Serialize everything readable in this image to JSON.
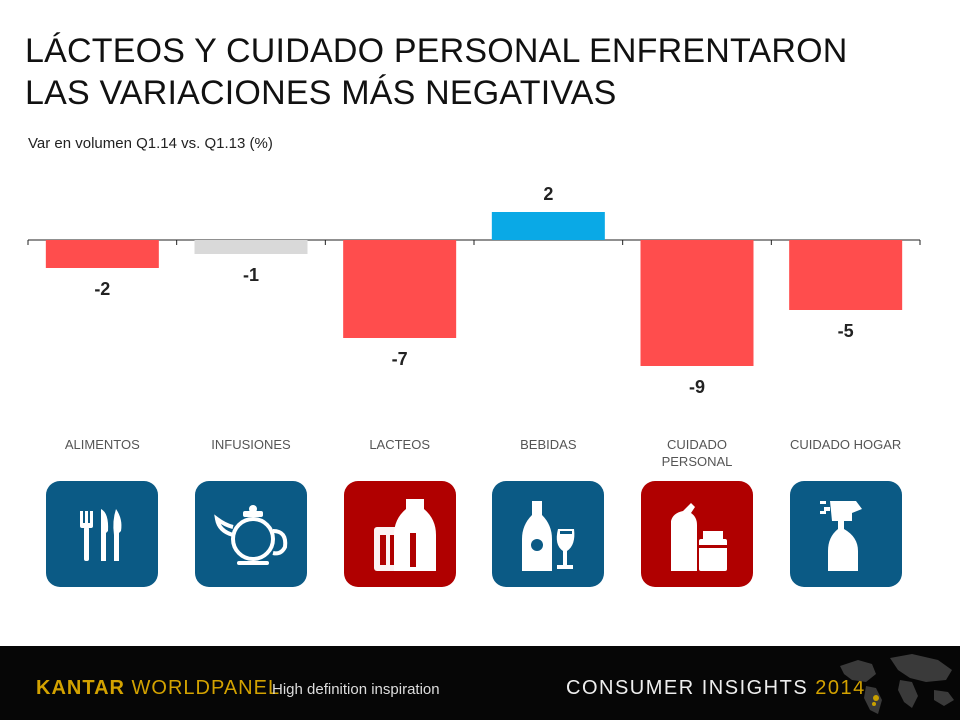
{
  "title": {
    "line1": "LÁCTEOS Y CUIDADO PERSONAL ENFRENTARON",
    "line2": "LAS VARIACIONES MÁS NEGATIVAS"
  },
  "subtitle": "Var en volumen Q1.14 vs. Q1.13 (%)",
  "colors": {
    "negative": "#ff4d4d",
    "neutral": "#d9d9d9",
    "positive": "#0aa9e6",
    "tile_blue": "#0b5a85",
    "tile_red": "#b00000"
  },
  "chart_data": {
    "type": "bar",
    "categories": [
      "ALIMENTOS",
      "INFUSIONES",
      "LACTEOS",
      "BEBIDAS",
      "CUIDADO PERSONAL",
      "CUIDADO HOGAR"
    ],
    "values": [
      -2,
      -1,
      -7,
      2,
      -9,
      -5
    ],
    "labels": [
      "-2",
      "-1",
      "-7",
      "2",
      "-9",
      "-5"
    ],
    "bar_colors": [
      "#ff4d4d",
      "#d9d9d9",
      "#ff4d4d",
      "#0aa9e6",
      "#ff4d4d",
      "#ff4d4d"
    ],
    "ylim": [
      -9,
      2
    ],
    "grid": false,
    "title": "",
    "xlabel": "",
    "ylabel": ""
  },
  "categories_display": [
    {
      "label": "ALIMENTOS",
      "icon": "cutlery-icon",
      "tile": "blue"
    },
    {
      "label": "INFUSIONES",
      "icon": "teapot-icon",
      "tile": "blue"
    },
    {
      "label": "LACTEOS",
      "icon": "milk-bottle-icon",
      "tile": "red"
    },
    {
      "label": "BEBIDAS",
      "icon": "bottle-glass-icon",
      "tile": "blue"
    },
    {
      "label": "CUIDADO PERSONAL",
      "icon": "personal-care-icon",
      "tile": "red"
    },
    {
      "label": "CUIDADO HOGAR",
      "icon": "spray-bottle-icon",
      "tile": "blue"
    }
  ],
  "footer": {
    "brand_1": "KANTAR",
    "brand_2": "WORLDPANEL",
    "tagline": "High definition inspiration",
    "insights": "CONSUMER INSIGHTS",
    "year": "2014"
  }
}
